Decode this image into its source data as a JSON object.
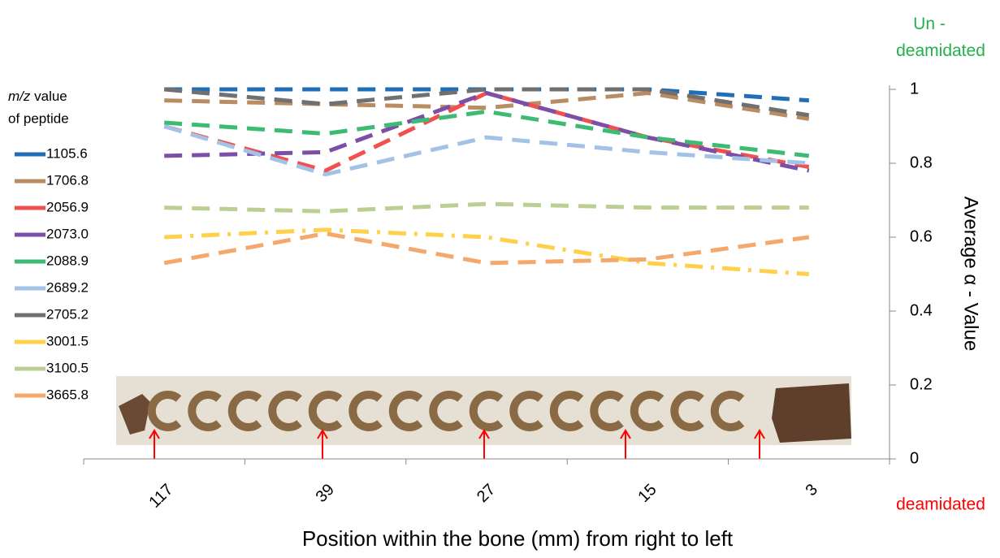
{
  "chart_data": {
    "type": "line",
    "x_label": "Position within the bone (mm) from right to left",
    "y_label": "Average  α - Value",
    "legend_title_italic": "m/z",
    "legend_title": "value of peptide",
    "annotation_top": "Un - deamidated",
    "annotation_bottom": "deamidated",
    "categories": [
      "117",
      "39",
      "27",
      "15",
      "3"
    ],
    "ylim": [
      0,
      1
    ],
    "yticks": [
      0,
      0.2,
      0.4,
      0.6,
      0.8,
      1
    ],
    "grid": false,
    "legend": "left",
    "series": [
      {
        "name": "1105.6",
        "color": "#1f6fb8",
        "dash": "dash",
        "values": [
          1.0,
          1.0,
          1.0,
          1.0,
          0.97
        ]
      },
      {
        "name": "1706.8",
        "color": "#b98c62",
        "dash": "dash",
        "values": [
          0.97,
          0.96,
          0.95,
          0.99,
          0.92
        ]
      },
      {
        "name": "2056.9",
        "color": "#f2504f",
        "dash": "dash",
        "values": [
          0.9,
          0.78,
          0.99,
          0.87,
          0.79
        ]
      },
      {
        "name": "2073.0",
        "color": "#7d4ea8",
        "dash": "dash",
        "values": [
          0.82,
          0.83,
          0.99,
          0.87,
          0.78
        ]
      },
      {
        "name": "2088.9",
        "color": "#3dbb73",
        "dash": "dash",
        "values": [
          0.91,
          0.88,
          0.94,
          0.87,
          0.82
        ]
      },
      {
        "name": "2689.2",
        "color": "#a2c2e6",
        "dash": "dash",
        "values": [
          0.9,
          0.77,
          0.87,
          0.83,
          0.8
        ]
      },
      {
        "name": "2705.2",
        "color": "#707070",
        "dash": "dash",
        "values": [
          1.0,
          0.96,
          1.0,
          1.0,
          0.93
        ]
      },
      {
        "name": "3001.5",
        "color": "#ffd04a",
        "dash": "dashdot",
        "values": [
          0.6,
          0.62,
          0.6,
          0.53,
          0.5
        ]
      },
      {
        "name": "3100.5",
        "color": "#bccf92",
        "dash": "dash",
        "values": [
          0.68,
          0.67,
          0.69,
          0.68,
          0.68
        ]
      },
      {
        "name": "3665.8",
        "color": "#f4a86c",
        "dash": "dash",
        "values": [
          0.53,
          0.61,
          0.53,
          0.54,
          0.6
        ]
      }
    ]
  }
}
